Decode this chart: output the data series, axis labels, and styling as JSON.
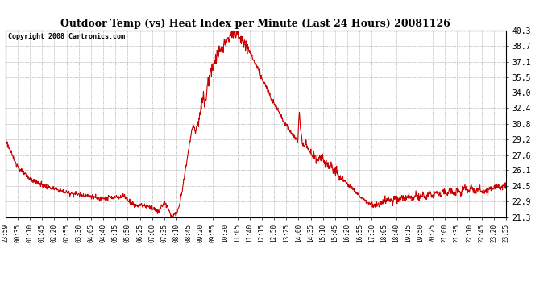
{
  "title": "Outdoor Temp (vs) Heat Index per Minute (Last 24 Hours) 20081126",
  "copyright": "Copyright 2008 Cartronics.com",
  "line_color": "#cc0000",
  "background_color": "#ffffff",
  "grid_color": "#aaaaaa",
  "yticks": [
    21.3,
    22.9,
    24.5,
    26.1,
    27.6,
    29.2,
    30.8,
    32.4,
    34.0,
    35.5,
    37.1,
    38.7,
    40.3
  ],
  "ylim": [
    21.3,
    40.3
  ],
  "xtick_labels": [
    "23:59",
    "00:35",
    "01:10",
    "01:45",
    "02:20",
    "02:55",
    "03:30",
    "04:05",
    "04:40",
    "05:15",
    "05:50",
    "06:25",
    "07:00",
    "07:35",
    "08:10",
    "08:45",
    "09:20",
    "09:55",
    "10:30",
    "11:05",
    "11:40",
    "12:15",
    "12:50",
    "13:25",
    "14:00",
    "14:35",
    "15:10",
    "15:45",
    "16:20",
    "16:55",
    "17:30",
    "18:05",
    "18:40",
    "19:15",
    "19:50",
    "20:25",
    "21:00",
    "21:35",
    "22:10",
    "22:45",
    "23:20",
    "23:55"
  ],
  "num_points": 1440,
  "key_values": {
    "0": 29.2,
    "20": 27.5,
    "40": 26.2,
    "60": 25.5,
    "80": 25.0,
    "100": 24.7,
    "120": 24.4,
    "140": 24.2,
    "160": 24.0,
    "180": 23.8,
    "200": 23.7,
    "220": 23.6,
    "240": 23.5,
    "260": 23.3,
    "270": 23.1,
    "280": 23.4,
    "290": 23.2,
    "300": 23.4,
    "310": 23.2,
    "320": 23.5,
    "330": 23.3,
    "340": 23.6,
    "350": 23.2,
    "360": 22.8,
    "370": 22.6,
    "380": 22.5,
    "390": 22.6,
    "400": 22.5,
    "410": 22.4,
    "420": 22.3,
    "430": 22.1,
    "440": 21.8,
    "445": 22.3,
    "450": 22.5,
    "455": 22.8,
    "460": 22.6,
    "465": 22.4,
    "470": 21.9,
    "475": 21.5,
    "480": 21.4,
    "490": 21.6,
    "500": 22.5,
    "510": 24.5,
    "520": 26.8,
    "530": 29.0,
    "540": 30.8,
    "545": 30.0,
    "550": 30.5,
    "555": 31.0,
    "560": 32.0,
    "565": 33.0,
    "570": 33.5,
    "572": 32.5,
    "574": 33.2,
    "576": 32.8,
    "578": 33.5,
    "580": 34.8,
    "582": 35.2,
    "584": 34.8,
    "586": 35.5,
    "590": 36.2,
    "592": 35.8,
    "594": 36.5,
    "596": 36.0,
    "598": 36.8,
    "600": 37.2,
    "602": 36.8,
    "604": 37.5,
    "606": 37.0,
    "608": 37.8,
    "610": 38.0,
    "612": 37.5,
    "614": 38.2,
    "616": 37.8,
    "618": 38.5,
    "620": 38.8,
    "622": 38.3,
    "624": 38.9,
    "626": 38.4,
    "628": 39.0,
    "630": 39.4,
    "632": 38.9,
    "634": 39.5,
    "636": 39.0,
    "638": 39.6,
    "640": 39.2,
    "642": 39.7,
    "644": 39.3,
    "646": 40.0,
    "648": 39.6,
    "650": 40.1,
    "652": 39.7,
    "654": 40.2,
    "656": 39.8,
    "658": 40.3,
    "660": 40.0,
    "662": 39.6,
    "664": 40.1,
    "666": 39.5,
    "668": 39.8,
    "670": 39.4,
    "672": 39.7,
    "674": 39.3,
    "676": 39.6,
    "678": 39.2,
    "680": 39.5,
    "685": 39.0,
    "690": 38.8,
    "695": 38.5,
    "700": 38.2,
    "710": 37.5,
    "720": 36.8,
    "730": 36.0,
    "740": 35.2,
    "750": 34.5,
    "760": 33.8,
    "770": 33.0,
    "780": 32.5,
    "790": 31.8,
    "800": 31.0,
    "810": 30.5,
    "820": 30.0,
    "830": 29.5,
    "840": 29.0,
    "845": 32.0,
    "850": 29.5,
    "855": 28.8,
    "860": 28.5,
    "865": 28.8,
    "870": 28.2,
    "880": 27.8,
    "890": 27.5,
    "900": 27.2,
    "910": 27.5,
    "915": 27.0,
    "920": 26.8,
    "930": 26.5,
    "935": 26.8,
    "940": 26.3,
    "945": 26.0,
    "950": 26.3,
    "955": 25.8,
    "960": 25.5,
    "970": 25.2,
    "980": 24.8,
    "990": 24.5,
    "1000": 24.2,
    "1010": 23.8,
    "1020": 23.4,
    "1030": 23.1,
    "1040": 22.9,
    "1050": 22.7,
    "1060": 22.5,
    "1070": 22.6,
    "1080": 22.8,
    "1090": 23.0,
    "1100": 23.2,
    "1110": 22.9,
    "1120": 23.3,
    "1130": 23.0,
    "1140": 23.4,
    "1150": 23.1,
    "1160": 23.5,
    "1170": 23.2,
    "1180": 23.6,
    "1190": 23.3,
    "1200": 23.7,
    "1210": 23.3,
    "1220": 23.8,
    "1230": 23.4,
    "1240": 23.9,
    "1250": 23.5,
    "1260": 24.0,
    "1270": 23.6,
    "1280": 24.1,
    "1290": 23.7,
    "1300": 24.2,
    "1310": 23.8,
    "1320": 24.3,
    "1330": 23.9,
    "1340": 24.4,
    "1350": 24.0,
    "1360": 24.2,
    "1370": 23.8,
    "1380": 24.0,
    "1390": 24.3,
    "1400": 24.1,
    "1410": 24.4,
    "1420": 24.2,
    "1430": 24.5,
    "1439": 24.4
  }
}
